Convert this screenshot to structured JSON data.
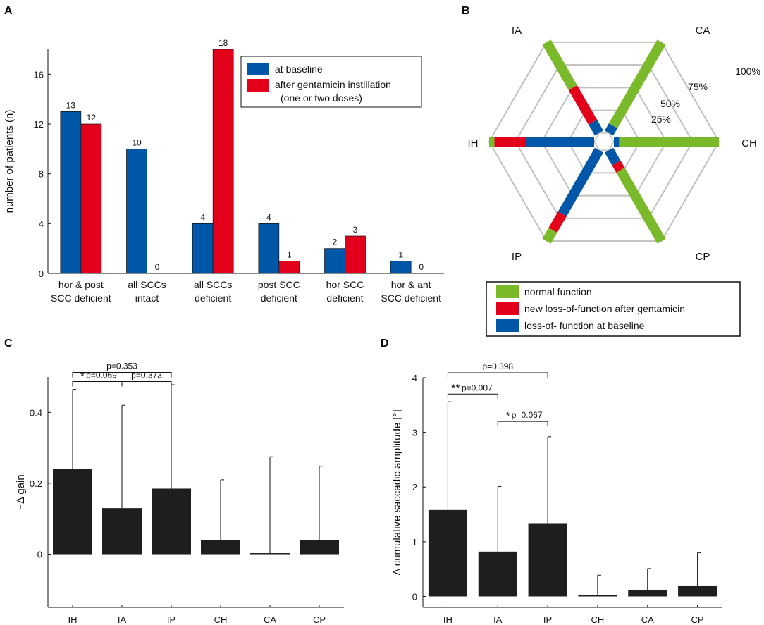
{
  "panels": {
    "A": "A",
    "B": "B",
    "C": "C",
    "D": "D"
  },
  "colors": {
    "blue": "#0057a8",
    "red": "#e3001b",
    "green": "#7ab929",
    "dark": "#1e1e1e",
    "grid": "#c0c0c0"
  },
  "chart_data": [
    {
      "id": "A",
      "type": "bar",
      "ylabel": "number of patients (n)",
      "ylim": [
        0,
        18
      ],
      "yticks": [
        0,
        4,
        8,
        12,
        16
      ],
      "categories": [
        [
          "hor & post",
          "SCC deficient"
        ],
        [
          "all SCCs",
          "intact"
        ],
        [
          "all SCCs",
          "deficient"
        ],
        [
          "post SCC",
          "deficient"
        ],
        [
          "hor SCC",
          "deficient"
        ],
        [
          "hor & ant",
          "SCC deficient"
        ]
      ],
      "series": [
        {
          "name": "at baseline",
          "color": "#0057a8",
          "values": [
            13,
            10,
            4,
            4,
            2,
            1
          ]
        },
        {
          "name": "after gentamicin instillation",
          "name2": "(one or two doses)",
          "color": "#e3001b",
          "values": [
            12,
            0,
            18,
            1,
            3,
            0
          ]
        }
      ]
    },
    {
      "id": "B",
      "type": "radar",
      "axes": [
        "CH",
        "CA",
        "IA",
        "IH",
        "IP",
        "CP"
      ],
      "ring_labels": [
        "25%",
        "50%",
        "75%",
        "100%"
      ],
      "ranges": {
        "CH": [
          [
            "blue",
            0,
            0.05
          ],
          [
            "green",
            0.05,
            1
          ]
        ],
        "CA": [
          [
            "blue",
            0,
            0.08
          ],
          [
            "green",
            0.08,
            1
          ]
        ],
        "IA": [
          [
            "blue",
            0,
            0.12
          ],
          [
            "red",
            0.12,
            0.5
          ],
          [
            "green",
            0.5,
            1
          ]
        ],
        "IH": [
          [
            "blue",
            0,
            0.65
          ],
          [
            "red",
            0.65,
            0.95
          ],
          [
            "green",
            0.95,
            1
          ]
        ],
        "IP": [
          [
            "blue",
            0,
            0.7
          ],
          [
            "red",
            0.7,
            0.88
          ],
          [
            "green",
            0.88,
            1
          ]
        ],
        "CP": [
          [
            "blue",
            0,
            0.14
          ],
          [
            "red",
            0.14,
            0.22
          ],
          [
            "green",
            0.22,
            1
          ]
        ]
      },
      "legend": [
        {
          "label": "normal function",
          "color": "#7ab929"
        },
        {
          "label": "new loss-of-function after gentamicin",
          "color": "#e3001b"
        },
        {
          "label": "loss-of- function at baseline",
          "color": "#0057a8"
        }
      ]
    },
    {
      "id": "C",
      "type": "bar",
      "ylabel": "−Δ gain",
      "ylim": [
        -0.15,
        0.5
      ],
      "yticks": [
        0,
        0.2,
        0.4
      ],
      "ytick_labels": [
        "0",
        "0.2",
        "0.4"
      ],
      "categories": [
        "IH",
        "IA",
        "IP",
        "CH",
        "CA",
        "CP"
      ],
      "values": [
        0.24,
        0.13,
        0.185,
        0.04,
        0.003,
        0.04
      ],
      "errors": [
        0.465,
        0.42,
        0.478,
        0.21,
        0.275,
        0.248
      ],
      "brackets": [
        {
          "a": 0,
          "b": 1,
          "y": 0.487,
          "label": "p=0.069",
          "star": "*"
        },
        {
          "a": 1,
          "b": 2,
          "y": 0.487,
          "label": "p=0.373",
          "star": ""
        },
        {
          "a": 0,
          "b": 2,
          "y": 0.513,
          "label": "p=0.353",
          "star": ""
        }
      ]
    },
    {
      "id": "D",
      "type": "bar",
      "ylabel": "Δ cumulative saccadic amplitude [°]",
      "ylim": [
        -0.2,
        4
      ],
      "yticks": [
        0,
        1,
        2,
        3,
        4
      ],
      "ytick_labels": [
        "0",
        "1",
        "2",
        "3",
        "4"
      ],
      "categories": [
        "IH",
        "IA",
        "IP",
        "CH",
        "CA",
        "CP"
      ],
      "values": [
        1.58,
        0.82,
        1.34,
        0.0,
        0.12,
        0.2
      ],
      "errors": [
        3.56,
        2.01,
        2.92,
        0.39,
        0.51,
        0.8
      ],
      "brackets": [
        {
          "a": 0,
          "b": 1,
          "y": 3.7,
          "label": "p=0.007",
          "star": "**"
        },
        {
          "a": 1,
          "b": 2,
          "y": 3.2,
          "label": "p=0.067",
          "star": "*"
        },
        {
          "a": 0,
          "b": 2,
          "y": 4.09,
          "label": "p=0.398",
          "star": ""
        }
      ]
    }
  ]
}
